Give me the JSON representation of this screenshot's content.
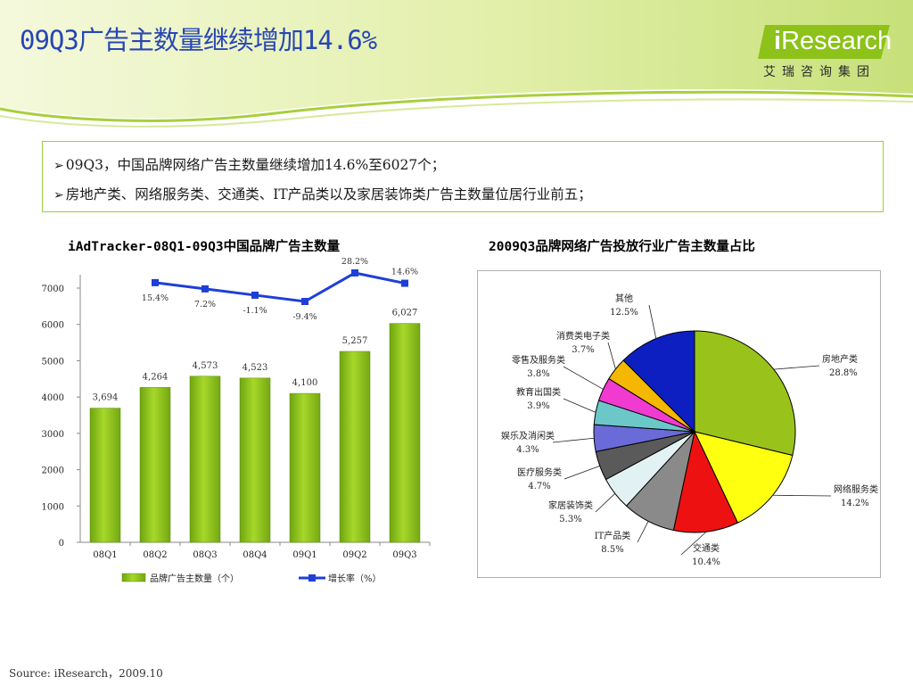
{
  "header": {
    "title": "09Q3广告主数量继续增加14.6%",
    "logo_i": "i",
    "logo_word": "Research",
    "logo_sub": "艾瑞咨询集团"
  },
  "bullets": [
    "09Q3，中国品牌网络广告主数量继续增加14.6%至6027个；",
    "房地产类、网络服务类、交通类、IT产品类以及家居装饰类广告主数量位居行业前五；"
  ],
  "colors": {
    "title": "#2846b4",
    "bar": "#8cc21a",
    "line": "#1f3fd8",
    "header_green": "#c6e07a",
    "box_border": "#9ccc3c"
  },
  "chart_data": [
    {
      "type": "bar",
      "title": "iAdTracker-08Q1-09Q3中国品牌广告主数量",
      "categories": [
        "08Q1",
        "08Q2",
        "08Q3",
        "08Q4",
        "09Q1",
        "09Q2",
        "09Q3"
      ],
      "series": [
        {
          "name": "品牌广告主数量（个）",
          "kind": "bar",
          "values": [
            3694,
            4264,
            4573,
            4523,
            4100,
            5257,
            6027
          ],
          "labels": [
            "3,694",
            "4,264",
            "4,573",
            "4,523",
            "4,100",
            "5,257",
            "6,027"
          ]
        },
        {
          "name": "增长率（%）",
          "kind": "line",
          "values": [
            null,
            15.4,
            7.2,
            -1.1,
            -9.4,
            28.2,
            14.6
          ],
          "labels": [
            "",
            "15.4%",
            "7.2%",
            "-1.1%",
            "-9.4%",
            "28.2%",
            "14.6%"
          ]
        }
      ],
      "ylim": [
        0,
        7000
      ],
      "yticks": [
        "0",
        "1000",
        "2000",
        "3000",
        "4000",
        "5000",
        "6000",
        "7000"
      ],
      "legend": "bottom"
    },
    {
      "type": "pie",
      "title": "2009Q3品牌网络广告投放行业广告主数量占比",
      "slices": [
        {
          "label": "房地产类",
          "value": 28.8,
          "text": "28.8%",
          "color": "#99c31a"
        },
        {
          "label": "网络服务类",
          "value": 14.2,
          "text": "14.2%",
          "color": "#ffff10"
        },
        {
          "label": "交通类",
          "value": 10.4,
          "text": "10.4%",
          "color": "#ee1111"
        },
        {
          "label": "IT产品类",
          "value": 8.5,
          "text": "8.5%",
          "color": "#8a8a8a"
        },
        {
          "label": "家居装饰类",
          "value": 5.3,
          "text": "5.3%",
          "color": "#e2f2f2"
        },
        {
          "label": "医疗服务类",
          "value": 4.7,
          "text": "4.7%",
          "color": "#5a5a5a"
        },
        {
          "label": "娱乐及消闲类",
          "value": 4.3,
          "text": "4.3%",
          "color": "#6a6ad8"
        },
        {
          "label": "教育出国类",
          "value": 3.9,
          "text": "3.9%",
          "color": "#6cc8c8"
        },
        {
          "label": "零售及服务类",
          "value": 3.8,
          "text": "3.8%",
          "color": "#f03ad0"
        },
        {
          "label": "消费类电子类",
          "value": 3.7,
          "text": "3.7%",
          "color": "#f5b800"
        },
        {
          "label": "其他",
          "value": 12.5,
          "text": "12.5%",
          "color": "#0d1fc0"
        }
      ]
    }
  ],
  "source": "Source: iResearch，2009.10"
}
